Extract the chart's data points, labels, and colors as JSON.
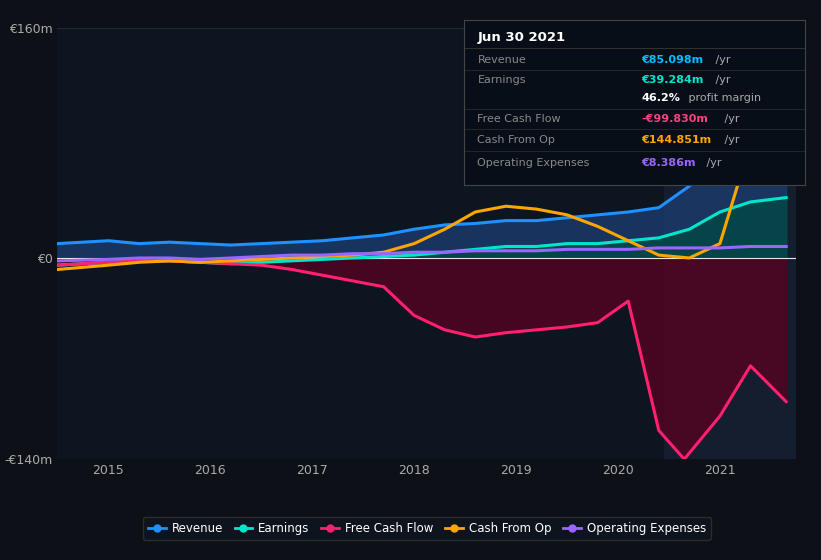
{
  "bg_color": "#0d1117",
  "plot_bg_color": "#0d1520",
  "title_box": {
    "date": "Jun 30 2021",
    "rows": [
      {
        "label": "Revenue",
        "value": "€85.098m",
        "suffix": " /yr",
        "value_color": "#00bfff"
      },
      {
        "label": "Earnings",
        "value": "€39.284m",
        "suffix": " /yr",
        "value_color": "#00e5cc"
      },
      {
        "label": "",
        "value": "46.2%",
        "suffix": " profit margin",
        "value_color": "#ffffff"
      },
      {
        "label": "Free Cash Flow",
        "value": "-€99.830m",
        "suffix": " /yr",
        "value_color": "#ff4080"
      },
      {
        "label": "Cash From Op",
        "value": "€144.851m",
        "suffix": " /yr",
        "value_color": "#ffa500"
      },
      {
        "label": "Operating Expenses",
        "value": "€8.386m",
        "suffix": " /yr",
        "value_color": "#9966ff"
      }
    ]
  },
  "ylim": [
    -140,
    160
  ],
  "yticks": [
    -140,
    0,
    160
  ],
  "ytick_labels": [
    "-€140m",
    "€0",
    "€160m"
  ],
  "xmin": 2014.5,
  "xmax": 2021.75,
  "xticks": [
    2015,
    2016,
    2017,
    2018,
    2019,
    2020,
    2021
  ],
  "highlight_xstart": 2020.45,
  "highlight_xend": 2021.75,
  "series": {
    "revenue": {
      "color": "#1e90ff",
      "fill_color": "#1a3a6a",
      "x": [
        2014.5,
        2015.0,
        2015.3,
        2015.6,
        2015.9,
        2016.2,
        2016.5,
        2016.8,
        2017.1,
        2017.4,
        2017.7,
        2018.0,
        2018.3,
        2018.6,
        2018.9,
        2019.2,
        2019.5,
        2019.8,
        2020.1,
        2020.4,
        2020.7,
        2021.0,
        2021.3,
        2021.65
      ],
      "y": [
        10,
        12,
        10,
        11,
        10,
        9,
        10,
        11,
        12,
        14,
        16,
        20,
        23,
        24,
        26,
        26,
        28,
        30,
        32,
        35,
        50,
        70,
        85,
        95
      ]
    },
    "earnings": {
      "color": "#00e5cc",
      "fill_color": "#004a44",
      "x": [
        2014.5,
        2015.0,
        2015.3,
        2015.6,
        2015.9,
        2016.2,
        2016.5,
        2016.8,
        2017.1,
        2017.4,
        2017.7,
        2018.0,
        2018.3,
        2018.6,
        2018.9,
        2019.2,
        2019.5,
        2019.8,
        2020.1,
        2020.4,
        2020.7,
        2021.0,
        2021.3,
        2021.65
      ],
      "y": [
        -5,
        -3,
        -2,
        -2,
        -3,
        -4,
        -3,
        -2,
        -1,
        0,
        1,
        2,
        4,
        6,
        8,
        8,
        10,
        10,
        12,
        14,
        20,
        32,
        39,
        42
      ]
    },
    "free_cash_flow": {
      "color": "#ff2070",
      "fill_color": "#5a0020",
      "x": [
        2014.5,
        2015.0,
        2015.3,
        2015.6,
        2015.9,
        2016.2,
        2016.5,
        2016.8,
        2017.1,
        2017.4,
        2017.7,
        2018.0,
        2018.3,
        2018.6,
        2018.9,
        2019.2,
        2019.5,
        2019.8,
        2020.1,
        2020.4,
        2020.65,
        2021.0,
        2021.3,
        2021.65
      ],
      "y": [
        -5,
        -3,
        -2,
        -2,
        -3,
        -4,
        -5,
        -8,
        -12,
        -16,
        -20,
        -40,
        -50,
        -55,
        -52,
        -50,
        -48,
        -45,
        -30,
        -120,
        -140,
        -110,
        -75,
        -100
      ]
    },
    "cash_from_op": {
      "color": "#ffa500",
      "x": [
        2014.5,
        2015.0,
        2015.3,
        2015.6,
        2015.9,
        2016.2,
        2016.5,
        2016.8,
        2017.1,
        2017.4,
        2017.7,
        2018.0,
        2018.3,
        2018.6,
        2018.9,
        2019.2,
        2019.5,
        2019.8,
        2020.1,
        2020.4,
        2020.7,
        2021.0,
        2021.3,
        2021.65
      ],
      "y": [
        -8,
        -5,
        -3,
        -2,
        -3,
        -2,
        -1,
        0,
        1,
        2,
        4,
        10,
        20,
        32,
        36,
        34,
        30,
        22,
        12,
        2,
        0,
        10,
        80,
        145
      ]
    },
    "operating_expenses": {
      "color": "#9966ff",
      "x": [
        2014.5,
        2015.0,
        2015.3,
        2015.6,
        2015.9,
        2016.2,
        2016.5,
        2016.8,
        2017.1,
        2017.4,
        2017.7,
        2018.0,
        2018.3,
        2018.6,
        2018.9,
        2019.2,
        2019.5,
        2019.8,
        2020.1,
        2020.4,
        2020.7,
        2021.0,
        2021.3,
        2021.65
      ],
      "y": [
        -2,
        -1,
        0,
        0,
        -1,
        0,
        1,
        2,
        2,
        3,
        3,
        4,
        4,
        5,
        5,
        5,
        6,
        6,
        6,
        7,
        7,
        7,
        8,
        8
      ]
    }
  },
  "legend": [
    {
      "label": "Revenue",
      "color": "#1e90ff"
    },
    {
      "label": "Earnings",
      "color": "#00e5cc"
    },
    {
      "label": "Free Cash Flow",
      "color": "#ff2070"
    },
    {
      "label": "Cash From Op",
      "color": "#ffa500"
    },
    {
      "label": "Operating Expenses",
      "color": "#9966ff"
    }
  ]
}
